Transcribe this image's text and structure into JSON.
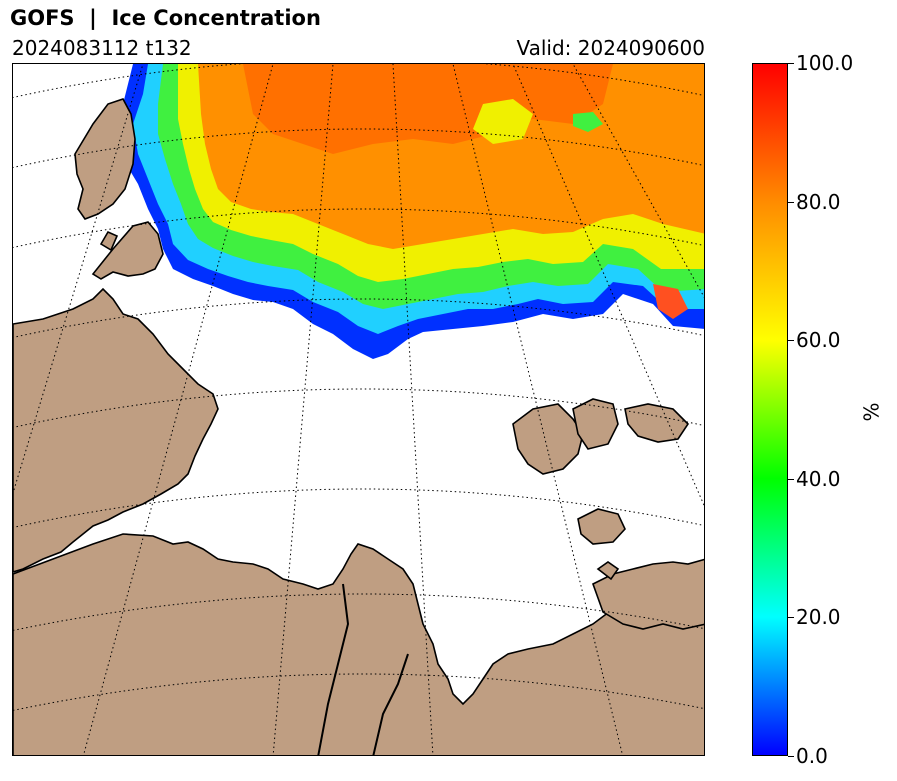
{
  "header": {
    "title": "GOFS  |  Ice Concentration",
    "run": "2024083112 t132",
    "valid": "Valid: 2024090600"
  },
  "colorbar": {
    "unit": "%",
    "ticks": [
      "0.0",
      "20.0",
      "40.0",
      "60.0",
      "80.0",
      "100.0"
    ],
    "range": [
      0,
      100
    ],
    "stops": [
      "#0000ff",
      "#00ffff",
      "#00ff00",
      "#ffff00",
      "#ff8c00",
      "#ff0000"
    ]
  },
  "map": {
    "land_color": "#bf9e82",
    "ocean_color": "#ffffff",
    "coast_color": "#000000",
    "graticule": "dotted"
  }
}
